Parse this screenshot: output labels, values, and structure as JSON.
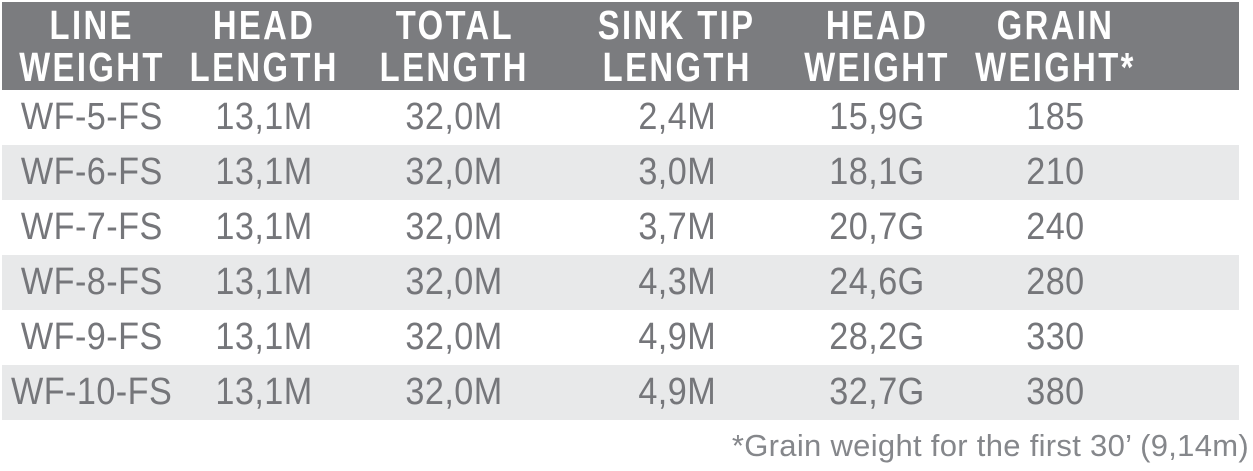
{
  "table": {
    "columns": [
      {
        "line1": "LINE",
        "line2": "WEIGHT"
      },
      {
        "line1": "HEAD",
        "line2": "LENGTH"
      },
      {
        "line1": "TOTAL",
        "line2": "LENGTH"
      },
      {
        "line1": "SINK TIP",
        "line2": "LENGTH"
      },
      {
        "line1": "HEAD",
        "line2": "WEIGHT"
      },
      {
        "line1": "GRAIN",
        "line2": "WEIGHT*"
      }
    ],
    "rows": [
      [
        "WF-5-FS",
        "13,1M",
        "32,0M",
        "2,4M",
        "15,9G",
        "185"
      ],
      [
        "WF-6-FS",
        "13,1M",
        "32,0M",
        "3,0M",
        "18,1G",
        "210"
      ],
      [
        "WF-7-FS",
        "13,1M",
        "32,0M",
        "3,7M",
        "20,7G",
        "240"
      ],
      [
        "WF-8-FS",
        "13,1M",
        "32,0M",
        "4,3M",
        "24,6G",
        "280"
      ],
      [
        "WF-9-FS",
        "13,1M",
        "32,0M",
        "4,9M",
        "28,2G",
        "330"
      ],
      [
        "WF-10-FS",
        "13,1M",
        "32,0M",
        "4,9M",
        "32,7G",
        "380"
      ]
    ],
    "footnote": "*Grain weight for the first 30’ (9,14m)"
  },
  "colors": {
    "header_bg": "#7B7C7F",
    "header_text": "#FFFFFF",
    "row_text": "#75767A",
    "stripe_bg": "#E8E9EA",
    "footnote_text": "#85878B"
  }
}
